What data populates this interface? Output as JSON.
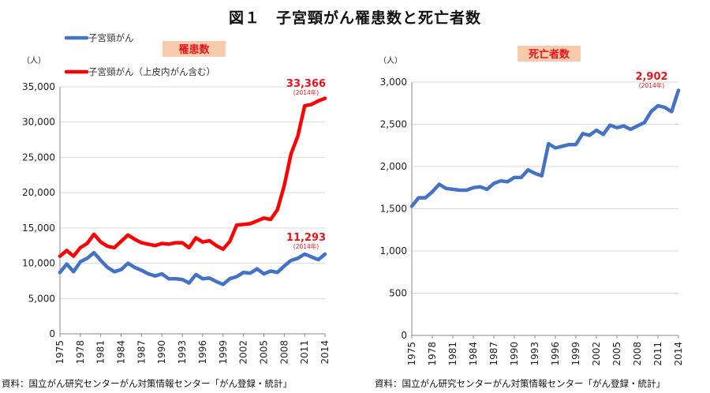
{
  "page_title": "図１　子宮頸がん罹患数と死亡者数",
  "charts": {
    "left": {
      "panel_label": "罹患数",
      "unit": "（人）",
      "source": "資料：国立がん研究センターがん対策情報センター「がん登録・統計」",
      "annotations": [
        {
          "value_text": "33,366",
          "sub": "(2014年)",
          "color": "#e8141b"
        },
        {
          "value_text": "11,293",
          "sub": "(2014年)",
          "color": "#e8141b"
        }
      ]
    },
    "right": {
      "panel_label": "死亡者数",
      "unit": "（人）",
      "source": "資料：国立がん研究センターがん対策情報センター「がん登録・統計」",
      "annotations": [
        {
          "value_text": "2,902",
          "sub": "(2014年)",
          "color": "#e8141b"
        }
      ]
    }
  },
  "colors": {
    "blue": "#4472c4",
    "red": "#ff0000",
    "label_bg": "#f8cbad",
    "label_text": "#e8141b",
    "grid": "#d9d9d9"
  },
  "chart_data": [
    {
      "type": "line",
      "x": [
        1975,
        1976,
        1977,
        1978,
        1979,
        1980,
        1981,
        1982,
        1983,
        1984,
        1985,
        1986,
        1987,
        1988,
        1989,
        1990,
        1991,
        1992,
        1993,
        1994,
        1995,
        1996,
        1997,
        1998,
        1999,
        2000,
        2001,
        2002,
        2003,
        2004,
        2005,
        2006,
        2007,
        2008,
        2009,
        2010,
        2011,
        2012,
        2013,
        2014
      ],
      "x_ticks": [
        "1975",
        "1978",
        "1981",
        "1984",
        "1987",
        "1990",
        "1993",
        "1996",
        "1999",
        "2002",
        "2005",
        "2008",
        "2011",
        "2014"
      ],
      "ylim": [
        0,
        35000
      ],
      "y_ticks": [
        "0",
        "5,000",
        "10,000",
        "15,000",
        "20,000",
        "25,000",
        "30,000",
        "35,000"
      ],
      "legend_position": "top-left",
      "series": [
        {
          "name": "子宮頸がん",
          "color": "#4472c4",
          "values": [
            8700,
            9900,
            8800,
            10200,
            10700,
            11500,
            10400,
            9400,
            8800,
            9100,
            10000,
            9400,
            9000,
            8500,
            8200,
            8500,
            7800,
            7800,
            7700,
            7200,
            8400,
            7800,
            7900,
            7400,
            7000,
            7800,
            8100,
            8700,
            8600,
            9200,
            8500,
            8900,
            8700,
            9600,
            10400,
            10700,
            11300,
            10900,
            10500,
            11293
          ]
        },
        {
          "name": "子宮頸がん（上皮内がん含む）",
          "color": "#ff0000",
          "values": [
            11000,
            11800,
            11000,
            12200,
            12800,
            14100,
            13000,
            12400,
            12200,
            13100,
            14000,
            13400,
            12900,
            12700,
            12500,
            12800,
            12700,
            12900,
            12900,
            12200,
            13600,
            13000,
            13200,
            12500,
            12000,
            13100,
            15400,
            15500,
            15600,
            16000,
            16400,
            16200,
            17600,
            21000,
            25500,
            28000,
            32300,
            32500,
            33000,
            33366
          ]
        }
      ]
    },
    {
      "type": "line",
      "x": [
        1975,
        1976,
        1977,
        1978,
        1979,
        1980,
        1981,
        1982,
        1983,
        1984,
        1985,
        1986,
        1987,
        1988,
        1989,
        1990,
        1991,
        1992,
        1993,
        1994,
        1995,
        1996,
        1997,
        1998,
        1999,
        2000,
        2001,
        2002,
        2003,
        2004,
        2005,
        2006,
        2007,
        2008,
        2009,
        2010,
        2011,
        2012,
        2013,
        2014
      ],
      "x_ticks": [
        "1975",
        "1978",
        "1981",
        "1984",
        "1987",
        "1990",
        "1993",
        "1996",
        "1999",
        "2002",
        "2005",
        "2008",
        "2011",
        "2014"
      ],
      "ylim": [
        0,
        3000
      ],
      "y_ticks": [
        "0",
        "500",
        "1,000",
        "1,500",
        "2,000",
        "2,500",
        "3,000"
      ],
      "series": [
        {
          "color": "#4472c4",
          "values": [
            1530,
            1630,
            1630,
            1700,
            1790,
            1740,
            1730,
            1720,
            1720,
            1750,
            1760,
            1730,
            1800,
            1830,
            1820,
            1870,
            1870,
            1960,
            1920,
            1890,
            2270,
            2220,
            2240,
            2260,
            2260,
            2390,
            2370,
            2430,
            2380,
            2490,
            2460,
            2480,
            2440,
            2480,
            2520,
            2650,
            2720,
            2700,
            2650,
            2902
          ]
        }
      ]
    }
  ]
}
